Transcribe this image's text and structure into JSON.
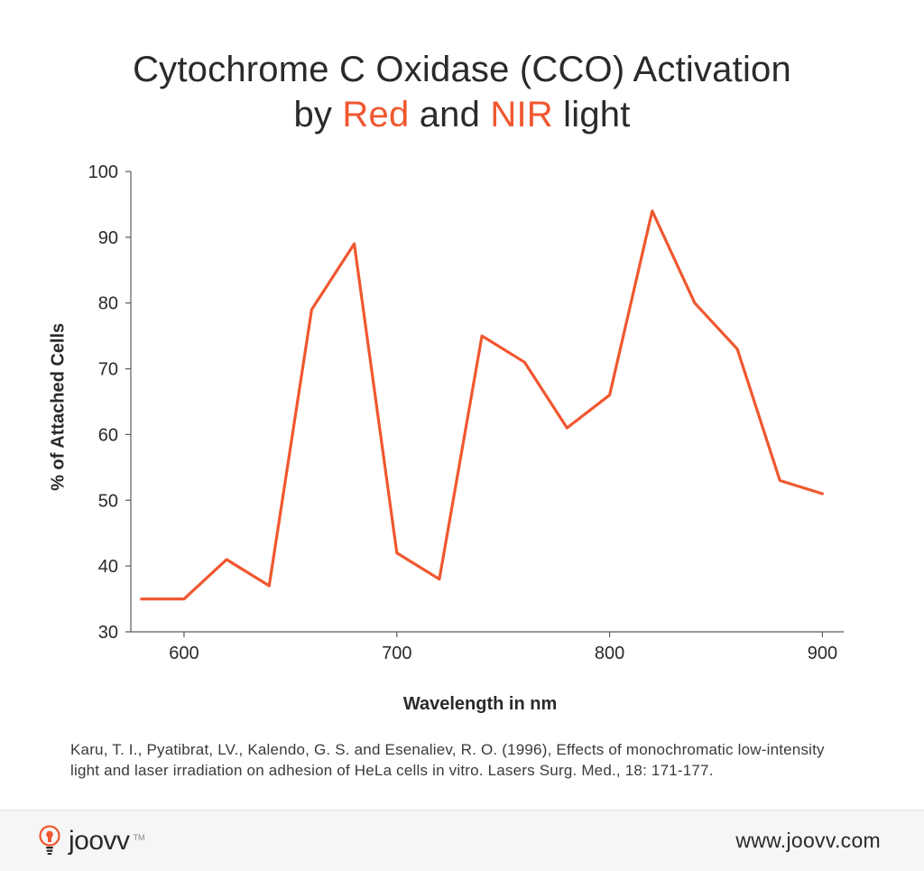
{
  "title": {
    "line1_pre": "Cytochrome C Oxidase (CCO) Activation",
    "line2_pre": "by ",
    "accent1": "Red",
    "mid": " and ",
    "accent2": "NIR",
    "line2_post": " light",
    "fontsize": 40,
    "accent_color": "#f0572f",
    "text_color": "#2a2a2a"
  },
  "chart": {
    "type": "line",
    "xlabel": "Wavelength in nm",
    "ylabel": "% of Attached Cells",
    "label_fontsize": 20,
    "label_fontweight": 700,
    "xlim": [
      575,
      910
    ],
    "ylim": [
      30,
      100
    ],
    "xticks": [
      600,
      700,
      800,
      900
    ],
    "yticks": [
      30,
      40,
      50,
      60,
      70,
      80,
      90,
      100
    ],
    "tick_fontsize": 20,
    "axis_color": "#5a5a5a",
    "axis_width": 1.2,
    "tick_length": 6,
    "background_color": "#ffffff",
    "line_color": "#f0572f",
    "line_width": 3.2,
    "series": {
      "x": [
        580,
        600,
        620,
        640,
        660,
        680,
        700,
        720,
        740,
        760,
        780,
        800,
        820,
        840,
        860,
        880,
        900
      ],
      "y": [
        35,
        35,
        41,
        37,
        79,
        89,
        42,
        38,
        75,
        71,
        61,
        66,
        94,
        80,
        73,
        53,
        51
      ]
    }
  },
  "citation": "Karu, T. I., Pyatibrat, LV., Kalendo, G. S. and Esenaliev, R. O. (1996), Effects of monochromatic low-intensity light and laser irradiation on adhesion of HeLa cells in vitro. Lasers Surg. Med., 18: 171-177.",
  "footer": {
    "brand": "joovv",
    "brand_accent_color": "#f0572f",
    "url": "www.joovv.com",
    "background_color": "#f6f6f6"
  }
}
